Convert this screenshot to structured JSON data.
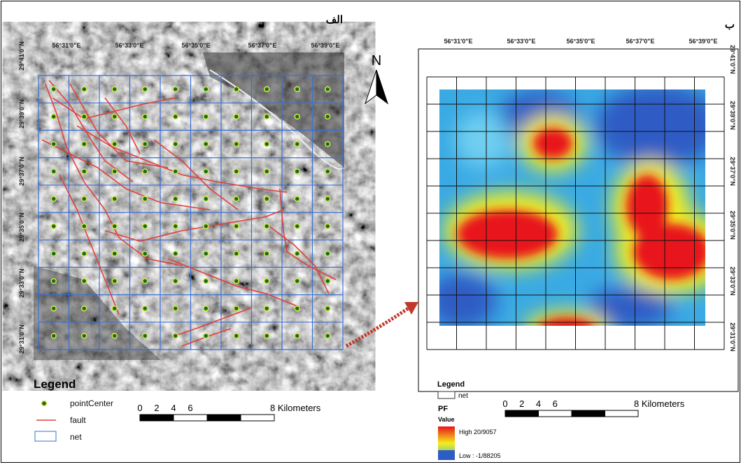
{
  "panels": [
    {
      "label": "الف",
      "longitudes": [
        "56°31'0\"E",
        "56°33'0\"E",
        "56°35'0\"E",
        "56°37'0\"E",
        "56°39'0\"E"
      ],
      "latitudes": [
        "29°41'0\"N",
        "29°39'0\"N",
        "29°37'0\"N",
        "29°35'0\"N",
        "29°33'0\"N",
        "29°31'0\"N"
      ],
      "north": "N",
      "legend": {
        "title": "Legend",
        "items": [
          "pointCenter",
          "fault",
          "net"
        ]
      },
      "scale": {
        "ticks": [
          "0",
          "2",
          "4",
          "6"
        ],
        "unit_label": "8 Kilometers"
      }
    },
    {
      "label": "ب",
      "longitudes": [
        "56°31'0\"E",
        "56°33'0\"E",
        "56°35'0\"E",
        "56°37'0\"E",
        "56°39'0\"E"
      ],
      "latitudes": [
        "29°41'0\"N",
        "29°39'0\"N",
        "29°37'0\"N",
        "29°35'0\"N",
        "29°33'0\"N",
        "29°31'0\"N"
      ],
      "legend": {
        "title": "Legend",
        "items": [
          "net"
        ],
        "field": "PF",
        "subtitle": "Value",
        "high": "High  20/9057",
        "low": "Low : -1/88205"
      },
      "scale": {
        "ticks": [
          "0",
          "2",
          "4",
          "6"
        ],
        "unit_label": "8 Kilometers"
      }
    }
  ]
}
